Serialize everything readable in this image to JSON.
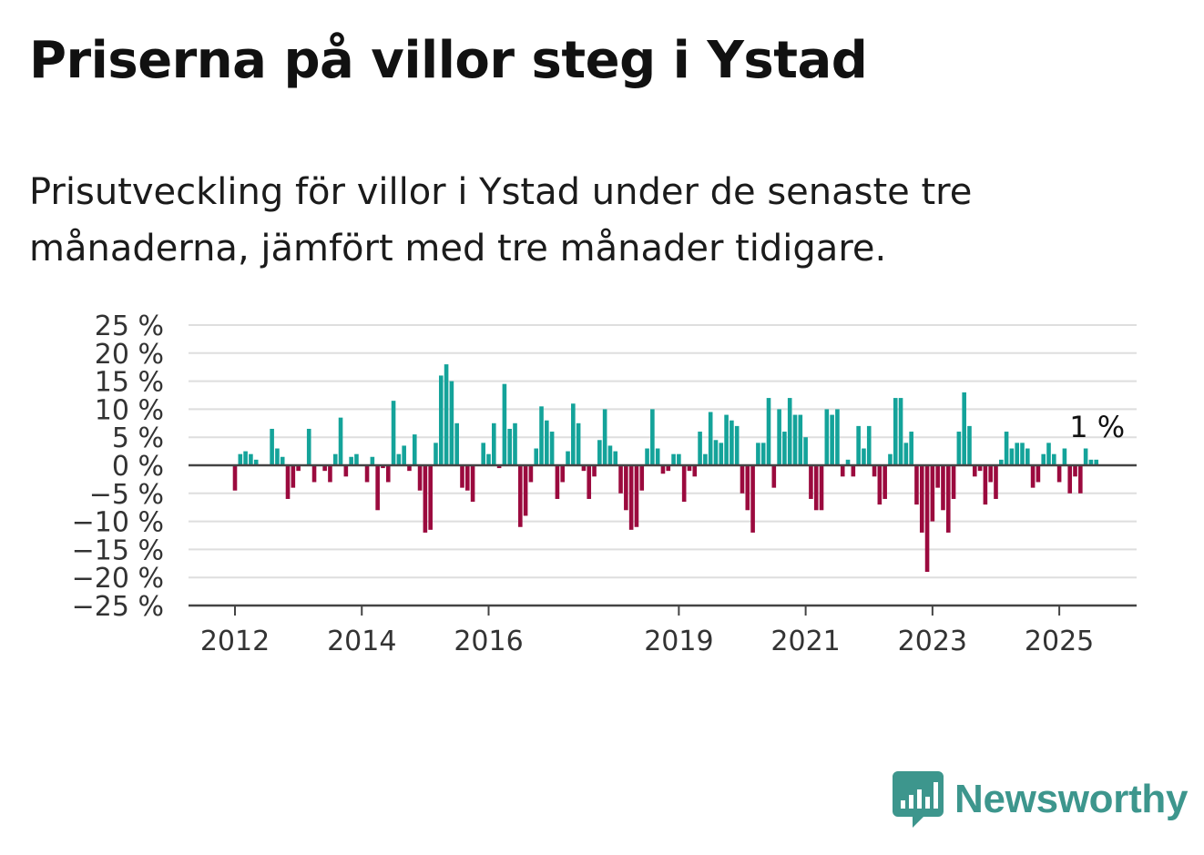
{
  "title": "Priserna på villor steg i Ystad",
  "subtitle": "Prisutveckling för villor i Ystad under de senaste tre månaderna, jämfört med tre månader tidigare.",
  "brand": {
    "name": "Newsworthy",
    "icon": "newsworthy-logo-icon",
    "color": "#3d968d"
  },
  "chart_data": {
    "type": "bar",
    "positive_color": "#14a39a",
    "negative_color": "#9b0a3e",
    "x_start": "2012-01",
    "x_end": "2025-07",
    "ylim": [
      -25,
      25
    ],
    "yticks": [
      25,
      20,
      15,
      10,
      5,
      0,
      -5,
      -10,
      -15,
      -20,
      -25
    ],
    "ytick_labels": [
      "25 %",
      "20 %",
      "15 %",
      "10 %",
      "5 %",
      "0 %",
      "−5 %",
      "−10 %",
      "−15 %",
      "−20 %",
      "−25 %"
    ],
    "xtick_labels": [
      "2012",
      "2014",
      "2016",
      "2019",
      "2021",
      "2023",
      "2025"
    ],
    "grid": true,
    "annotation": {
      "label": "1 %",
      "value": 1
    },
    "values": [
      -4.5,
      2,
      2.5,
      2,
      1,
      0,
      0,
      6.5,
      3,
      1.5,
      -6,
      -4,
      -1,
      0,
      6.5,
      -3,
      0,
      -1,
      -3,
      2,
      8.5,
      -2,
      1.5,
      2,
      0,
      -3,
      1.5,
      -8,
      -0.5,
      -3,
      11.5,
      2,
      3.5,
      -1,
      5.5,
      -4.5,
      -12,
      -11.5,
      4,
      16,
      18,
      15,
      7.5,
      -4,
      -4.5,
      -6.5,
      0,
      4,
      2,
      7.5,
      -0.5,
      14.5,
      6.5,
      7.5,
      -11,
      -9,
      -3,
      3,
      10.5,
      8,
      6,
      -6,
      -3,
      2.5,
      11,
      7.5,
      -1,
      -6,
      -2,
      4.5,
      10,
      3.5,
      2.5,
      -5,
      -8,
      -11.5,
      -11,
      -4.5,
      3,
      10,
      3,
      -1.5,
      -1,
      2,
      2,
      -6.5,
      -1,
      -2,
      6,
      2,
      9.5,
      4.5,
      4,
      9,
      8,
      7,
      -5,
      -8,
      -12,
      4,
      4,
      12,
      -4,
      10,
      6,
      12,
      9,
      9,
      5,
      -6,
      -8,
      -8,
      10,
      9,
      10,
      -2,
      1,
      -2,
      7,
      3,
      7,
      -2,
      -7,
      -6,
      2,
      12,
      12,
      4,
      6,
      -7,
      -12,
      -19,
      -10,
      -4,
      -8,
      -12,
      -6,
      6,
      13,
      7,
      -2,
      -1,
      -7,
      -3,
      -6,
      1,
      6,
      3,
      4,
      4,
      3,
      -4,
      -3,
      2,
      4,
      2,
      -3,
      3,
      -5,
      -2,
      -5,
      3,
      1,
      1
    ]
  }
}
